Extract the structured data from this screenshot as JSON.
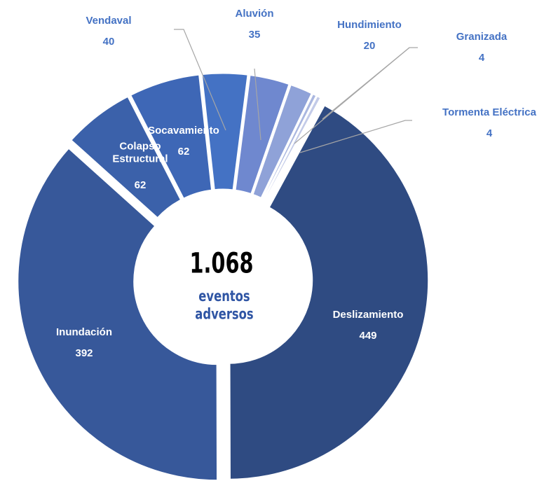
{
  "chart_data": {
    "type": "donut",
    "center_label": "1.068",
    "center_sublabel": "eventos adversos",
    "categories": [
      "Deslizamiento",
      "Inundación",
      "Colapso Estructural",
      "Socavamiento",
      "Vendaval",
      "Aluvión",
      "Hundimiento",
      "Granizada",
      "Tormenta Eléctrica"
    ],
    "values": [
      449,
      392,
      62,
      62,
      40,
      35,
      20,
      4,
      4
    ],
    "colors": [
      "#2f4b82",
      "#37589a",
      "#3b61aa",
      "#3e67b6",
      "#4472c4",
      "#6f88cf",
      "#8fa2d8",
      "#aab7e0",
      "#c3cbe8"
    ]
  }
}
